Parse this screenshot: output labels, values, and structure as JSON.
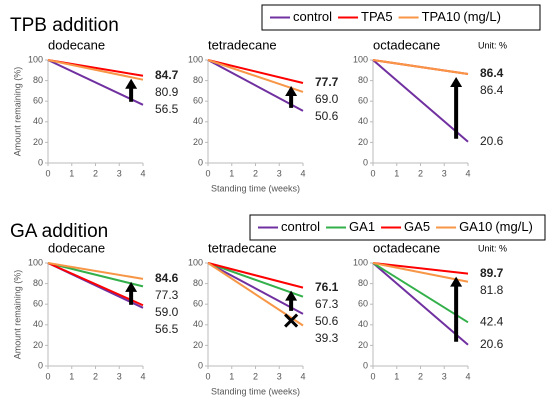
{
  "sections": [
    {
      "title": "TPB addition",
      "legend_unit": "(mg/L)"
    },
    {
      "title": "GA addition",
      "legend_unit": "(mg/L)"
    }
  ],
  "chart_data": [
    {
      "type": "line",
      "title": "dodecane",
      "ylabel": "Amount remaining (%)",
      "x": [
        0,
        4
      ],
      "xlim": [
        0,
        4
      ],
      "xticks": [
        0,
        1,
        2,
        3,
        4
      ],
      "ylim": [
        0,
        100
      ],
      "yticks": [
        0,
        20,
        40,
        60,
        80,
        100
      ],
      "highlight_series": 1,
      "series": [
        {
          "name": "control",
          "color": "#7030a0",
          "values": [
            100,
            56.5
          ],
          "value_labels": [
            null,
            "56.5"
          ]
        },
        {
          "name": "TPA5",
          "color": "#ff0000",
          "values": [
            100,
            84.7
          ],
          "value_labels": [
            null,
            "84.7"
          ]
        },
        {
          "name": "TPA10",
          "color": "#f79646",
          "values": [
            100,
            80.9
          ],
          "value_labels": [
            null,
            "80.9"
          ]
        }
      ]
    },
    {
      "type": "line",
      "title": "tetradecane",
      "xlabel": "Standing time (weeks)",
      "x": [
        0,
        4
      ],
      "xlim": [
        0,
        4
      ],
      "xticks": [
        0,
        1,
        2,
        3,
        4
      ],
      "ylim": [
        0,
        100
      ],
      "yticks": [
        0,
        20,
        40,
        60,
        80,
        100
      ],
      "highlight_series": 1,
      "series": [
        {
          "name": "control",
          "color": "#7030a0",
          "values": [
            100,
            50.6
          ],
          "value_labels": [
            null,
            "50.6"
          ]
        },
        {
          "name": "TPA5",
          "color": "#ff0000",
          "values": [
            100,
            77.7
          ],
          "value_labels": [
            null,
            "77.7"
          ]
        },
        {
          "name": "TPA10",
          "color": "#f79646",
          "values": [
            100,
            69.0
          ],
          "value_labels": [
            null,
            "69.0"
          ]
        }
      ]
    },
    {
      "type": "line",
      "title": "octadecane",
      "unit": "Unit: %",
      "x": [
        0,
        4
      ],
      "xlim": [
        0,
        4
      ],
      "xticks": [
        0,
        1,
        2,
        3,
        4
      ],
      "ylim": [
        0,
        100
      ],
      "yticks": [
        0,
        20,
        40,
        60,
        80,
        100
      ],
      "highlight_series": 1,
      "series": [
        {
          "name": "control",
          "color": "#7030a0",
          "values": [
            100,
            20.6
          ],
          "value_labels": [
            null,
            "20.6"
          ]
        },
        {
          "name": "TPA5",
          "color": "#ff0000",
          "values": [
            100,
            86.4
          ],
          "value_labels": [
            null,
            "86.4"
          ]
        },
        {
          "name": "TPA10",
          "color": "#f79646",
          "values": [
            100,
            86.4
          ],
          "value_labels": [
            null,
            "86.4"
          ]
        }
      ]
    },
    {
      "type": "line",
      "title": "dodecane",
      "ylabel": "Amount remaining (%)",
      "x": [
        0,
        4
      ],
      "xlim": [
        0,
        4
      ],
      "xticks": [
        0,
        1,
        2,
        3,
        4
      ],
      "ylim": [
        0,
        100
      ],
      "yticks": [
        0,
        20,
        40,
        60,
        80,
        100
      ],
      "highlight_series": 3,
      "series": [
        {
          "name": "control",
          "color": "#7030a0",
          "values": [
            100,
            56.5
          ],
          "value_labels": [
            null,
            "56.5"
          ]
        },
        {
          "name": "GA1",
          "color": "#33b04a",
          "values": [
            100,
            77.3
          ],
          "value_labels": [
            null,
            "77.3"
          ]
        },
        {
          "name": "GA5",
          "color": "#ff0000",
          "values": [
            100,
            59.0
          ],
          "value_labels": [
            null,
            "59.0"
          ]
        },
        {
          "name": "GA10",
          "color": "#f79646",
          "values": [
            100,
            84.6
          ],
          "value_labels": [
            null,
            "84.6"
          ]
        }
      ]
    },
    {
      "type": "line",
      "title": "tetradecane",
      "xlabel": "Standing time (weeks)",
      "x": [
        0,
        4
      ],
      "xlim": [
        0,
        4
      ],
      "xticks": [
        0,
        1,
        2,
        3,
        4
      ],
      "ylim": [
        0,
        100
      ],
      "yticks": [
        0,
        20,
        40,
        60,
        80,
        100
      ],
      "highlight_series": 2,
      "worse_series": 3,
      "series": [
        {
          "name": "control",
          "color": "#7030a0",
          "values": [
            100,
            50.6
          ],
          "value_labels": [
            null,
            "50.6"
          ]
        },
        {
          "name": "GA1",
          "color": "#33b04a",
          "values": [
            100,
            67.3
          ],
          "value_labels": [
            null,
            "67.3"
          ]
        },
        {
          "name": "GA5",
          "color": "#ff0000",
          "values": [
            100,
            76.1
          ],
          "value_labels": [
            null,
            "76.1"
          ]
        },
        {
          "name": "GA10",
          "color": "#f79646",
          "values": [
            100,
            39.3
          ],
          "value_labels": [
            null,
            "39.3"
          ]
        }
      ]
    },
    {
      "type": "line",
      "title": "octadecane",
      "unit": "Unit: %",
      "x": [
        0,
        4
      ],
      "xlim": [
        0,
        4
      ],
      "xticks": [
        0,
        1,
        2,
        3,
        4
      ],
      "ylim": [
        0,
        100
      ],
      "yticks": [
        0,
        20,
        40,
        60,
        80,
        100
      ],
      "highlight_series": 2,
      "series": [
        {
          "name": "control",
          "color": "#7030a0",
          "values": [
            100,
            20.6
          ],
          "value_labels": [
            null,
            "20.6"
          ]
        },
        {
          "name": "GA1",
          "color": "#33b04a",
          "values": [
            100,
            42.4
          ],
          "value_labels": [
            null,
            "42.4"
          ]
        },
        {
          "name": "GA5",
          "color": "#ff0000",
          "values": [
            100,
            89.7
          ],
          "value_labels": [
            null,
            "89.7"
          ]
        },
        {
          "name": "GA10",
          "color": "#f79646",
          "values": [
            100,
            81.8
          ],
          "value_labels": [
            null,
            "81.8"
          ]
        }
      ]
    }
  ]
}
